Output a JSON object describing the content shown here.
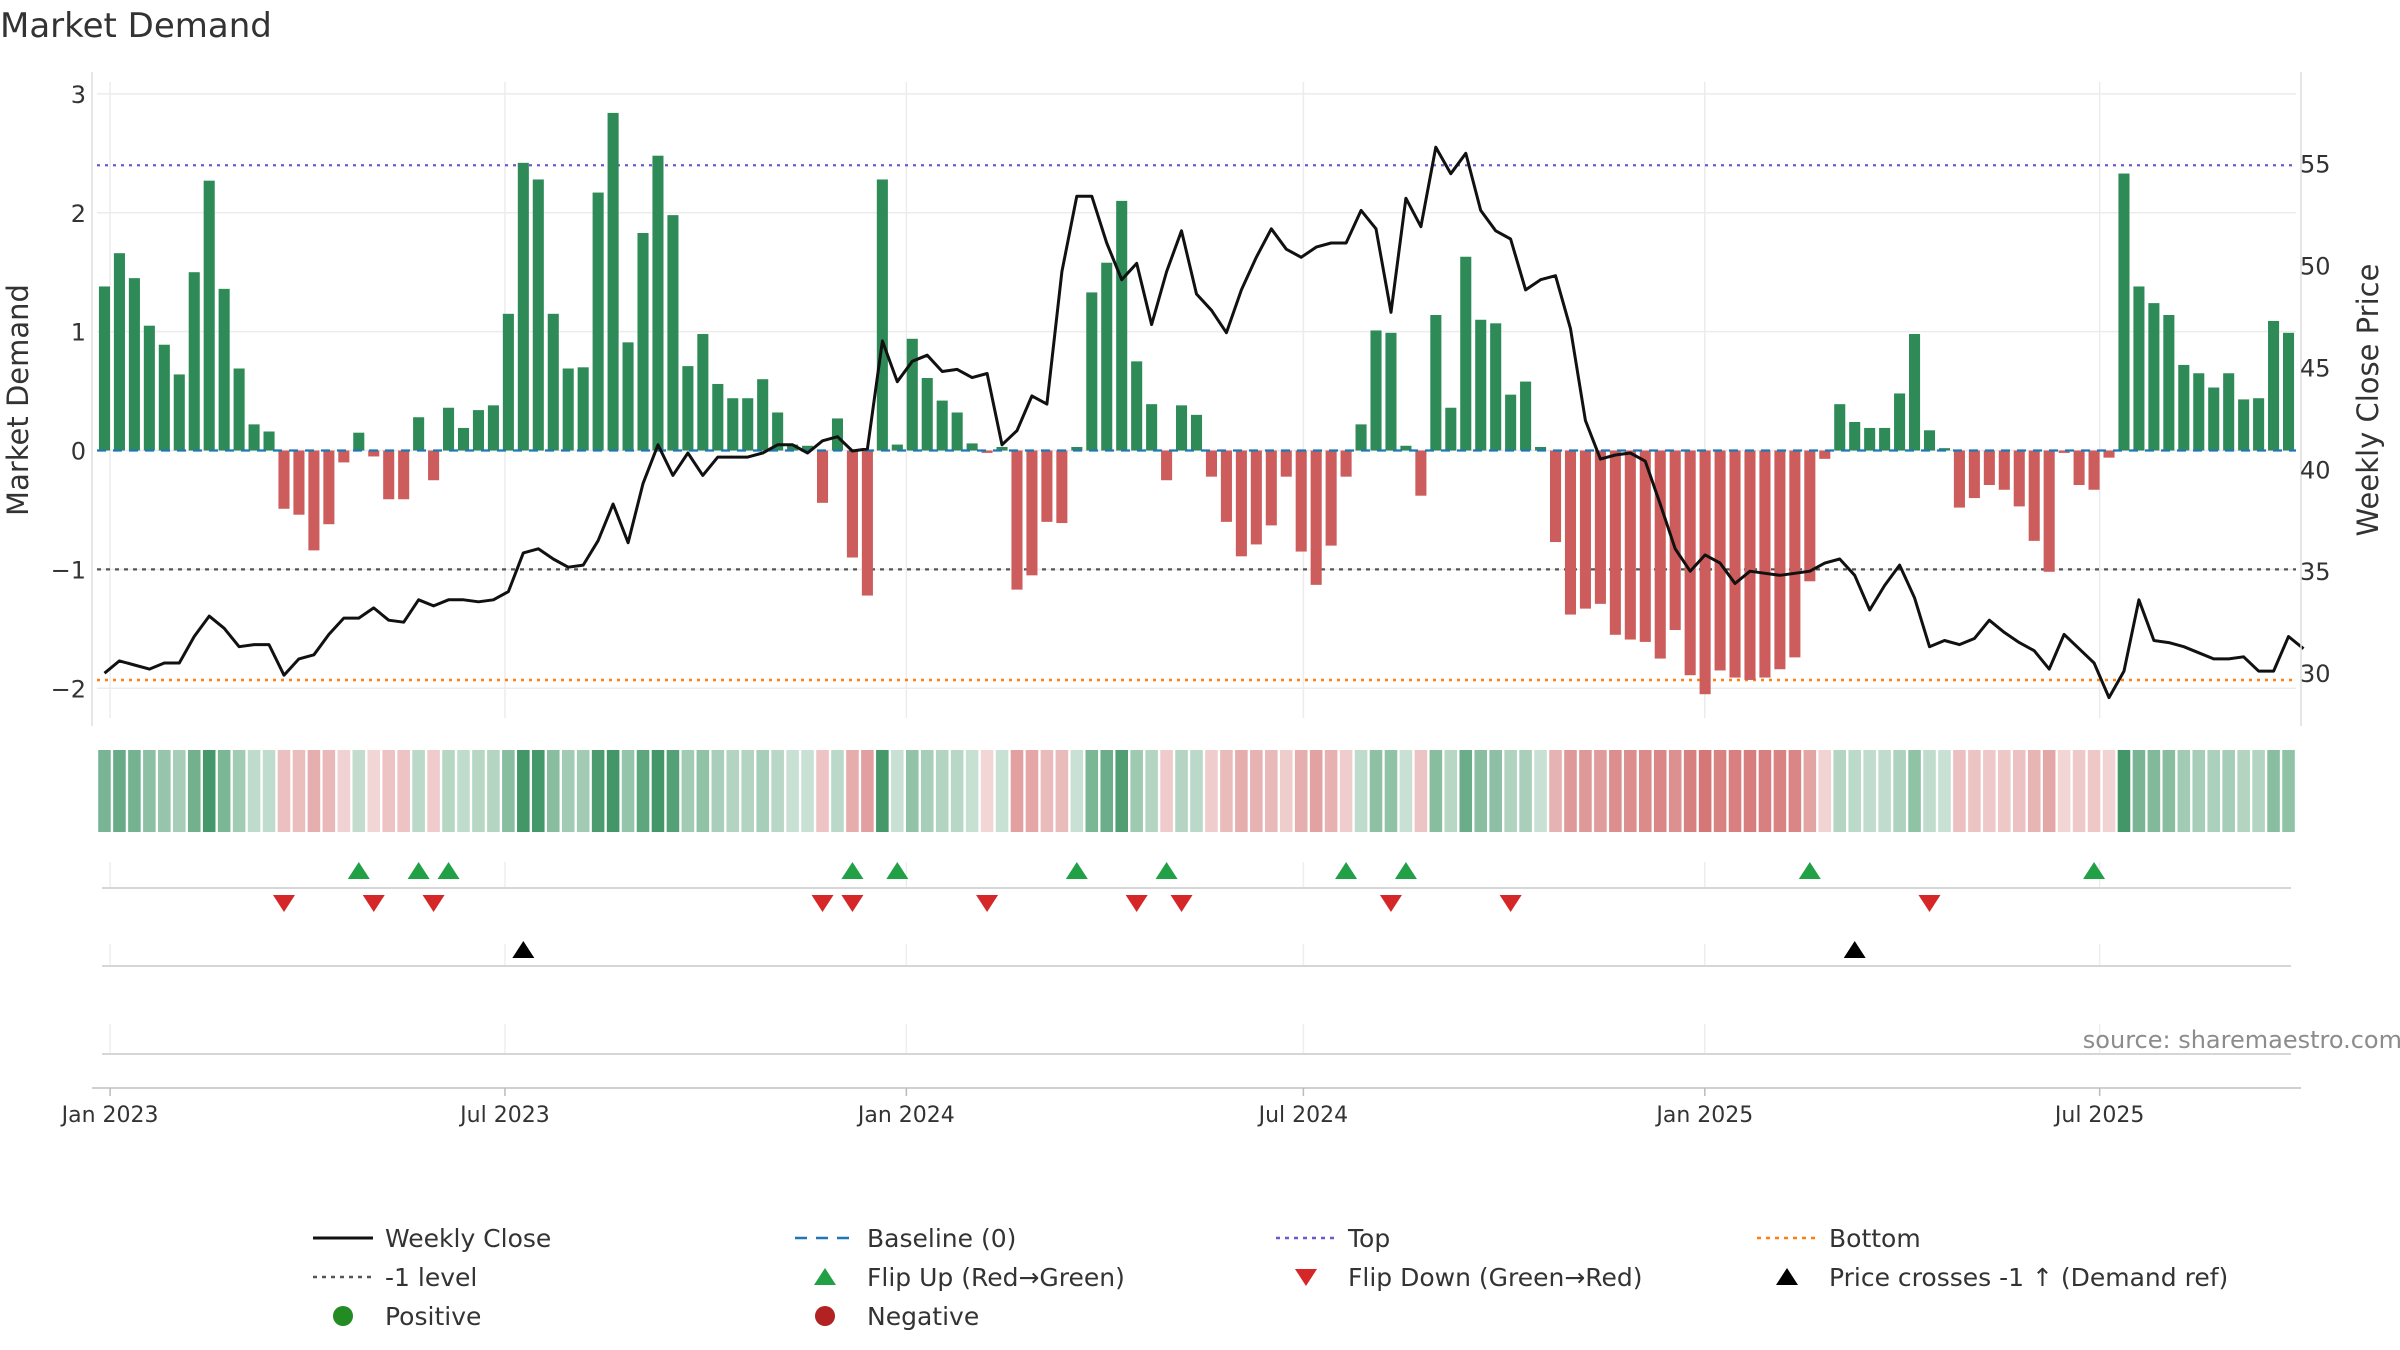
{
  "title": "Market Demand",
  "source": "source: sharemaestro.com",
  "colors": {
    "pos_bar": "#2e8b57",
    "neg_bar": "#cd5c5c",
    "close_line": "#111111",
    "baseline": "#1f77b4",
    "top_line": "#6a5acd",
    "bottom_line": "#ff7f0e",
    "minus1_line": "#555555",
    "flip_up": "#22a046",
    "flip_down": "#d62728",
    "cross": "#000000",
    "positive_dot": "#228b22",
    "negative_dot": "#b22222",
    "grid": "#ececec"
  },
  "chart_data": {
    "type": "bar",
    "title": "Market Demand",
    "ylabel": "Market Demand",
    "y2label": "Weekly Close Price",
    "ylim": [
      -2.25,
      3.1
    ],
    "y2lim": [
      27.8,
      59.0
    ],
    "yticks": [
      -2,
      -1,
      0,
      1,
      2,
      3
    ],
    "y2ticks": [
      30,
      35,
      40,
      45,
      50,
      55
    ],
    "x_start_date": "2022-12-26",
    "x_end_date": "2025-09-29",
    "xticks": [
      {
        "label": "Jan 2023",
        "date": "2023-01-01"
      },
      {
        "label": "Jul 2023",
        "date": "2023-07-01"
      },
      {
        "label": "Jan 2024",
        "date": "2024-01-01"
      },
      {
        "label": "Jul 2024",
        "date": "2024-07-01"
      },
      {
        "label": "Jan 2025",
        "date": "2025-01-01"
      },
      {
        "label": "Jul 2025",
        "date": "2025-07-01"
      }
    ],
    "levels": {
      "top": 2.4,
      "bottom": -1.93,
      "minus1": -1,
      "baseline": 0
    },
    "demand": [
      1.38,
      1.66,
      1.45,
      1.05,
      0.89,
      0.64,
      1.5,
      2.27,
      1.36,
      0.69,
      0.22,
      0.16,
      -0.49,
      -0.54,
      -0.84,
      -0.62,
      -0.1,
      0.15,
      -0.05,
      -0.41,
      -0.41,
      0.28,
      -0.25,
      0.36,
      0.19,
      0.34,
      0.38,
      1.15,
      2.42,
      2.28,
      1.15,
      0.69,
      0.7,
      2.17,
      2.84,
      0.91,
      1.83,
      2.48,
      1.98,
      0.71,
      0.98,
      0.56,
      0.44,
      0.44,
      0.6,
      0.32,
      0.05,
      0.04,
      -0.44,
      0.27,
      -0.9,
      -1.22,
      2.28,
      0.05,
      0.94,
      0.61,
      0.42,
      0.32,
      0.06,
      -0.02,
      0.03,
      -1.17,
      -1.05,
      -0.6,
      -0.61,
      0.03,
      1.33,
      1.58,
      2.1,
      0.75,
      0.39,
      -0.25,
      0.38,
      0.3,
      -0.22,
      -0.6,
      -0.89,
      -0.79,
      -0.63,
      -0.22,
      -0.85,
      -1.13,
      -0.8,
      -0.22,
      0.22,
      1.01,
      0.99,
      0.04,
      -0.38,
      1.14,
      0.36,
      1.63,
      1.1,
      1.07,
      0.47,
      0.58,
      0.03,
      -0.77,
      -1.38,
      -1.33,
      -1.29,
      -1.55,
      -1.59,
      -1.61,
      -1.75,
      -1.51,
      -1.89,
      -2.05,
      -1.85,
      -1.91,
      -1.93,
      -1.91,
      -1.84,
      -1.74,
      -1.1,
      -0.07,
      0.39,
      0.24,
      0.19,
      0.19,
      0.48,
      0.98,
      0.17,
      0.02,
      -0.48,
      -0.4,
      -0.29,
      -0.33,
      -0.47,
      -0.76,
      -1.02,
      -0.02,
      -0.29,
      -0.33,
      -0.06,
      2.33,
      1.38,
      1.24,
      1.14,
      0.72,
      0.65,
      0.53,
      0.65,
      0.43,
      0.44,
      1.09,
      0.99
    ],
    "close": [
      30.0,
      30.6,
      30.4,
      30.2,
      30.5,
      30.5,
      31.8,
      32.8,
      32.2,
      31.3,
      31.4,
      31.4,
      29.9,
      30.7,
      30.9,
      31.9,
      32.7,
      32.7,
      33.2,
      32.6,
      32.5,
      33.6,
      33.3,
      33.6,
      33.6,
      33.5,
      33.6,
      34.0,
      35.9,
      36.1,
      35.6,
      35.2,
      35.3,
      36.5,
      38.3,
      36.4,
      39.3,
      41.2,
      39.7,
      40.8,
      39.7,
      40.6,
      40.6,
      40.6,
      40.8,
      41.2,
      41.2,
      40.8,
      41.4,
      41.6,
      40.9,
      41.0,
      46.3,
      44.3,
      45.3,
      45.6,
      44.8,
      44.9,
      44.5,
      44.7,
      41.2,
      41.9,
      43.6,
      43.2,
      49.7,
      53.4,
      53.4,
      51.1,
      49.3,
      50.1,
      47.1,
      49.7,
      51.7,
      48.6,
      47.8,
      46.7,
      48.8,
      50.4,
      51.8,
      50.8,
      50.4,
      50.9,
      51.1,
      51.1,
      52.7,
      51.8,
      47.7,
      53.3,
      51.9,
      55.8,
      54.5,
      55.5,
      52.7,
      51.7,
      51.3,
      48.8,
      49.3,
      49.5,
      46.9,
      42.4,
      40.5,
      40.7,
      40.8,
      40.4,
      38.3,
      36.1,
      35.0,
      35.8,
      35.4,
      34.4,
      35.0,
      34.9,
      34.8,
      34.9,
      35.0,
      35.4,
      35.6,
      34.8,
      33.1,
      34.3,
      35.3,
      33.7,
      31.3,
      31.6,
      31.4,
      31.7,
      32.6,
      32.0,
      31.5,
      31.1,
      30.2,
      31.9,
      31.2,
      30.5,
      28.8,
      30.1,
      33.6,
      31.6,
      31.5,
      31.3,
      31.0,
      30.7,
      30.7,
      30.8,
      30.1,
      30.1,
      31.8,
      31.2
    ],
    "flip_up_weeks": [
      17,
      21,
      23,
      50,
      53,
      65,
      71,
      83,
      87,
      114,
      133
    ],
    "flip_down_weeks": [
      12,
      18,
      22,
      48,
      50,
      59,
      69,
      72,
      86,
      94,
      122
    ],
    "cross_weeks": [
      28,
      117
    ],
    "legend": [
      {
        "label": "Weekly Close",
        "style": "line-solid",
        "color": "#111111"
      },
      {
        "label": "Baseline (0)",
        "style": "line-dash",
        "color": "#1f77b4"
      },
      {
        "label": "Top",
        "style": "line-dot",
        "color": "#6a5acd"
      },
      {
        "label": "Bottom",
        "style": "line-dot",
        "color": "#ff7f0e"
      },
      {
        "label": "-1 level",
        "style": "line-dot",
        "color": "#555555"
      },
      {
        "label": "Flip Up (Red→Green)",
        "style": "tri-up",
        "color": "#22a046"
      },
      {
        "label": "Flip Down (Green→Red)",
        "style": "tri-down",
        "color": "#d62728"
      },
      {
        "label": "Price crosses -1 ↑ (Demand ref)",
        "style": "tri-up",
        "color": "#000000"
      },
      {
        "label": "Positive",
        "style": "dot",
        "color": "#228b22"
      },
      {
        "label": "Negative",
        "style": "dot",
        "color": "#b22222"
      }
    ]
  }
}
